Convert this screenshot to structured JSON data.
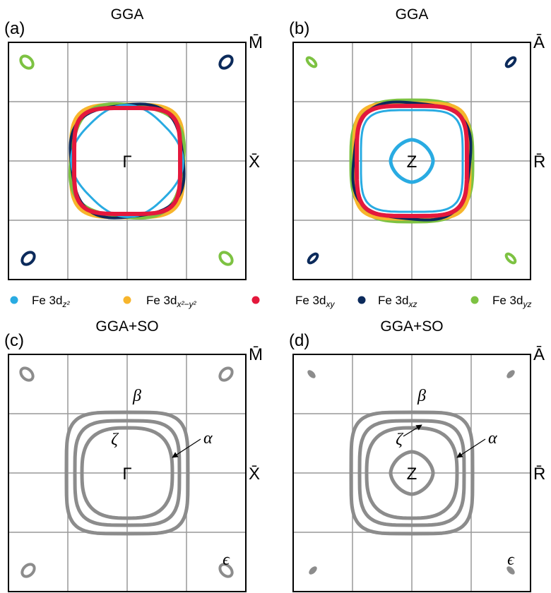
{
  "panels": [
    {
      "label": "(a)",
      "title": "GGA",
      "corner": "M̄",
      "side": "X̄",
      "center": "Γ"
    },
    {
      "label": "(b)",
      "title": "GGA",
      "corner": "Ā",
      "side": "R̄",
      "center": "Z"
    },
    {
      "label": "(c)",
      "title": "GGA+SO",
      "corner": "M̄",
      "side": "X̄",
      "center": "Γ",
      "annotations": [
        "β",
        "ζ",
        "α",
        "ϵ"
      ]
    },
    {
      "label": "(d)",
      "title": "GGA+SO",
      "corner": "Ā",
      "side": "R̄",
      "center": "Z",
      "annotations": [
        "β",
        "ζ",
        "α",
        "ϵ"
      ]
    }
  ],
  "legend": [
    {
      "name": "Fe 3d",
      "sub": "z²",
      "color": "#29abe2"
    },
    {
      "name": "Fe 3d",
      "sub": "x²−y²",
      "color": "#f7b52c"
    },
    {
      "name": "Fe 3d",
      "sub": "xy",
      "color": "#e4183c"
    },
    {
      "name": "Fe 3d",
      "sub": "xz",
      "color": "#0b2a5b"
    },
    {
      "name": "Fe 3d",
      "sub": "yz",
      "color": "#7dc242"
    }
  ]
}
